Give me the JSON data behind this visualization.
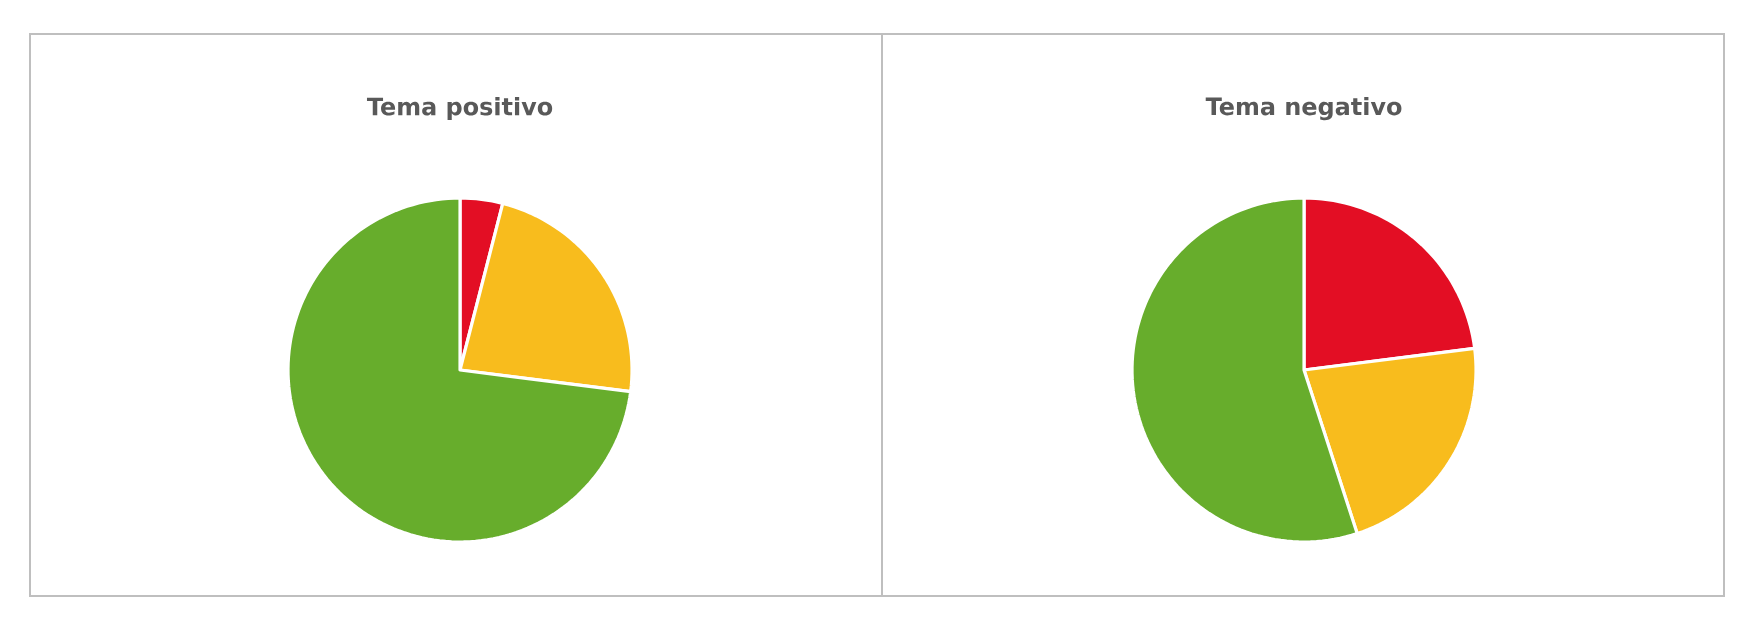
{
  "chart_data": [
    {
      "type": "pie",
      "title": "Tema positivo",
      "categories": [
        null,
        null,
        null
      ],
      "values": [
        4,
        23,
        73
      ],
      "colors": [
        "#e30e24",
        "#f8bc1d",
        "#67ad2c"
      ]
    },
    {
      "type": "pie",
      "title": "Tema negativo",
      "categories": [
        null,
        null,
        null
      ],
      "values": [
        23,
        22,
        55
      ],
      "colors": [
        "#e30e24",
        "#f8bc1d",
        "#67ad2c"
      ]
    }
  ]
}
